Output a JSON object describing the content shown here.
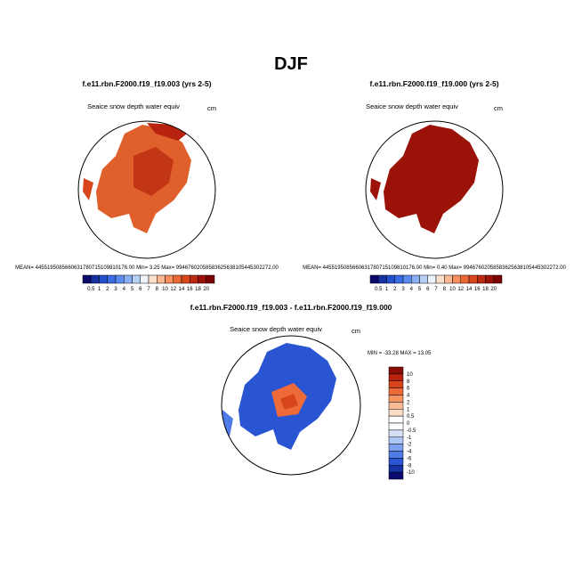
{
  "title": "DJF",
  "panels": [
    {
      "title": "f.e11.rbn.F2000.f19_f19.003 (yrs 2-5)",
      "variable": "Seaice snow depth water equiv",
      "units": "cm",
      "stats": "MEAN= 4455195085660631780715109810176.00   Min=   3.25  Max= 99467602058583625638105445302272.00"
    },
    {
      "title": "f.e11.rbn.F2000.f19_f19.000 (yrs 2-5)",
      "variable": "Seaice snow depth water equiv",
      "units": "cm",
      "stats": "MEAN= 4455195085660631780715109810176.00   Min=   0.40  Max= 99467602058583625638105445302272.00"
    }
  ],
  "colorbar": {
    "labels": [
      "0.5",
      "1",
      "2",
      "3",
      "4",
      "5",
      "6",
      "7",
      "8",
      "10",
      "12",
      "14",
      "16",
      "18",
      "20"
    ],
    "colors": [
      "#0b0b6b",
      "#1631a0",
      "#2450cc",
      "#3a6ce4",
      "#5b8bee",
      "#88aef3",
      "#b9d0f6",
      "#eef3fb",
      "#fbe0cc",
      "#fab893",
      "#f68e5e",
      "#ea6836",
      "#d8461e",
      "#bd2a12",
      "#9b1308",
      "#7a0403"
    ]
  },
  "difference": {
    "title": "f.e11.rbn.F2000.f19_f19.003 - f.e11.rbn.F2000.f19_f19.000",
    "variable": "Seaice snow depth water equiv",
    "units": "cm",
    "stats": "MIN = -33.28  MAX =  13.05",
    "colorbar": {
      "labels": [
        "10",
        "8",
        "6",
        "4",
        "2",
        "1",
        "0.5",
        "0",
        "-0.5",
        "-1",
        "-2",
        "-4",
        "-6",
        "-8",
        "-10"
      ],
      "colors": [
        "#8a0c05",
        "#b8230f",
        "#d8441c",
        "#ee6a38",
        "#f79462",
        "#f9bb96",
        "#fbdcc6",
        "#ffffff",
        "#ffffff",
        "#d3e0f7",
        "#aec6f4",
        "#7ea2ef",
        "#4f7be8",
        "#2a55d2",
        "#1633a6",
        "#0a0a70"
      ]
    }
  }
}
